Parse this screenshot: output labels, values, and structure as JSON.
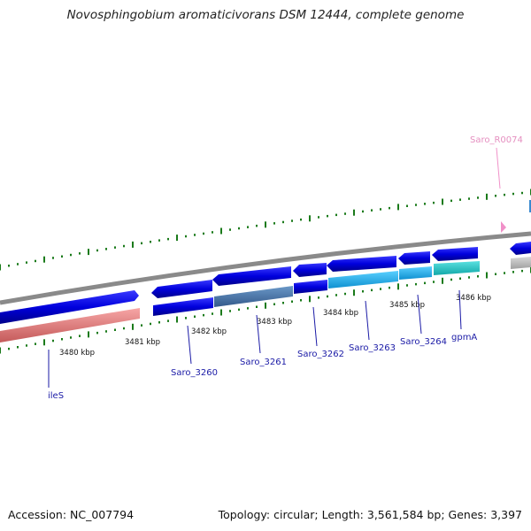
{
  "title": "Novosphingobium aromaticivorans DSM 12444, complete genome",
  "footer": {
    "accession": "Accession: NC_007794",
    "summary": "Topology: circular; Length: 3,561,584 bp; Genes: 3,397"
  },
  "tick_labels": [
    "3480 kbp",
    "3481 kbp",
    "3482 kbp",
    "3483 kbp",
    "3484 kbp",
    "3485 kbp",
    "3486 kbp"
  ],
  "genes": [
    {
      "id": "ileS",
      "strand": "plus",
      "feature_color": "#f08080",
      "cds_color": "#0000dd"
    },
    {
      "id": "Saro_3260",
      "strand": "minus",
      "feature_color": "#0000dd",
      "cds_color": "#0000dd"
    },
    {
      "id": "Saro_3261",
      "strand": "plus",
      "feature_color": "#4a7ab0",
      "cds_color": "#0000dd"
    },
    {
      "id": "Saro_3262",
      "strand": "minus",
      "feature_color": "#0000dd",
      "cds_color": "#0000dd"
    },
    {
      "id": "Saro_3263",
      "strand": "minus",
      "feature_color": "#1eb4f0",
      "cds_color": "#0000dd"
    },
    {
      "id": "Saro_3264",
      "strand": "minus",
      "feature_color": "#1eb4f0",
      "cds_color": "#0000dd"
    },
    {
      "id": "gpmA",
      "strand": "plus",
      "feature_color": "#1ec8c8",
      "cds_color": "#0000dd"
    }
  ],
  "rna": {
    "id": "Saro_R0074",
    "color": "#f090c8"
  },
  "colors": {
    "backbone": "#808080",
    "tick": "#1a7a1a",
    "label": "#1a1aa6",
    "cds": "#0000dd",
    "gray_feature": "#c0c0c0"
  }
}
